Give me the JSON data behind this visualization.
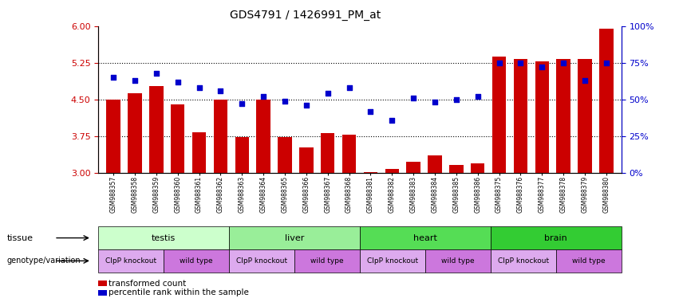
{
  "title": "GDS4791 / 1426991_PM_at",
  "samples": [
    "GSM988357",
    "GSM988358",
    "GSM988359",
    "GSM988360",
    "GSM988361",
    "GSM988362",
    "GSM988363",
    "GSM988364",
    "GSM988365",
    "GSM988366",
    "GSM988367",
    "GSM988368",
    "GSM988381",
    "GSM988382",
    "GSM988383",
    "GSM988384",
    "GSM988385",
    "GSM988386",
    "GSM988375",
    "GSM988376",
    "GSM988377",
    "GSM988378",
    "GSM988379",
    "GSM988380"
  ],
  "bar_values": [
    4.5,
    4.62,
    4.78,
    4.4,
    3.83,
    4.5,
    3.73,
    4.5,
    3.73,
    3.52,
    3.82,
    3.78,
    3.02,
    3.08,
    3.22,
    3.35,
    3.16,
    3.2,
    5.38,
    5.32,
    5.28,
    5.32,
    5.33,
    5.95
  ],
  "blue_percentiles": [
    65,
    63,
    68,
    62,
    58,
    56,
    47,
    52,
    49,
    46,
    54,
    58,
    42,
    36,
    51,
    48,
    50,
    52,
    75,
    75,
    72,
    75,
    63,
    75
  ],
  "bar_color": "#cc0000",
  "blue_color": "#0000cc",
  "ylim_left": [
    3.0,
    6.0
  ],
  "ylim_right": [
    0,
    100
  ],
  "yticks_left": [
    3.0,
    3.75,
    4.5,
    5.25,
    6.0
  ],
  "yticks_right": [
    0,
    25,
    50,
    75,
    100
  ],
  "hlines": [
    3.75,
    4.5,
    5.25
  ],
  "tissue_groups": [
    {
      "label": "testis",
      "start": 0,
      "end": 5,
      "color": "#ccffcc"
    },
    {
      "label": "liver",
      "start": 6,
      "end": 11,
      "color": "#99ee99"
    },
    {
      "label": "heart",
      "start": 12,
      "end": 17,
      "color": "#55dd55"
    },
    {
      "label": "brain",
      "start": 18,
      "end": 23,
      "color": "#33cc33"
    }
  ],
  "genotype_groups": [
    {
      "label": "ClpP knockout",
      "start": 0,
      "end": 2,
      "knockout": true
    },
    {
      "label": "wild type",
      "start": 3,
      "end": 5,
      "knockout": false
    },
    {
      "label": "ClpP knockout",
      "start": 6,
      "end": 8,
      "knockout": true
    },
    {
      "label": "wild type",
      "start": 9,
      "end": 11,
      "knockout": false
    },
    {
      "label": "ClpP knockout",
      "start": 12,
      "end": 14,
      "knockout": true
    },
    {
      "label": "wild type",
      "start": 15,
      "end": 17,
      "knockout": false
    },
    {
      "label": "ClpP knockout",
      "start": 18,
      "end": 20,
      "knockout": true
    },
    {
      "label": "wild type",
      "start": 21,
      "end": 23,
      "knockout": false
    }
  ],
  "knockout_color": "#ddaaee",
  "wildtype_color": "#cc77dd",
  "legend_items": [
    {
      "label": "transformed count",
      "color": "#cc0000"
    },
    {
      "label": "percentile rank within the sample",
      "color": "#0000cc"
    }
  ],
  "tissue_label": "tissue",
  "genotype_label": "genotype/variation",
  "ticklabel_bg": "#cccccc",
  "background_color": "#ffffff"
}
